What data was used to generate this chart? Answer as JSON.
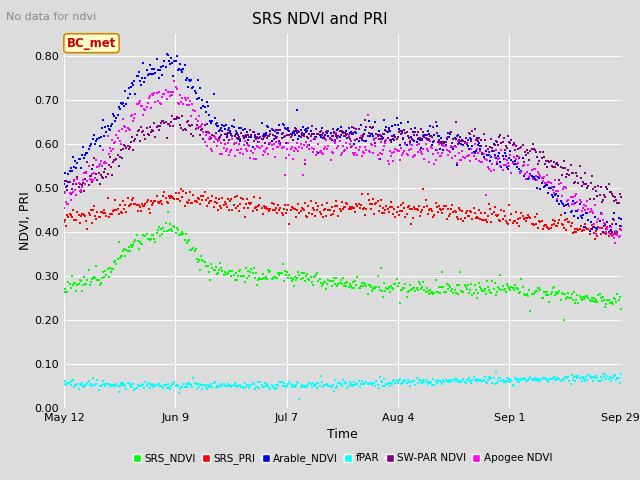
{
  "title": "SRS NDVI and PRI",
  "subtitle": "No data for ndvi",
  "ylabel": "NDVI, PRI",
  "xlabel": "Time",
  "ylim": [
    0.0,
    0.85
  ],
  "yticks": [
    0.0,
    0.1,
    0.2,
    0.3,
    0.4,
    0.5,
    0.6,
    0.7,
    0.8
  ],
  "xtick_labels": [
    "May 12",
    "Jun 9",
    "Jul 7",
    "Aug 4",
    "Sep 1",
    "Sep 29"
  ],
  "annotation_text": "BC_met",
  "annotation_color": "#cc0000",
  "bg_color": "#dcdcdc",
  "plot_bg_color": "#dcdcdc",
  "n_points": 500,
  "srs_ndvi_base": [
    0.265,
    0.3,
    0.38,
    0.41,
    0.31,
    0.3,
    0.3,
    0.29,
    0.28,
    0.27,
    0.27,
    0.27,
    0.27,
    0.26,
    0.25,
    0.24
  ],
  "srs_pri_base": [
    0.43,
    0.44,
    0.46,
    0.48,
    0.47,
    0.46,
    0.45,
    0.45,
    0.46,
    0.45,
    0.45,
    0.44,
    0.43,
    0.42,
    0.41,
    0.4
  ],
  "arable_ndvi_base": [
    0.52,
    0.62,
    0.75,
    0.79,
    0.65,
    0.62,
    0.63,
    0.62,
    0.62,
    0.62,
    0.61,
    0.6,
    0.56,
    0.5,
    0.43,
    0.41
  ],
  "fpar_base": [
    0.055,
    0.052,
    0.05,
    0.05,
    0.05,
    0.05,
    0.052,
    0.052,
    0.055,
    0.058,
    0.06,
    0.062,
    0.063,
    0.065,
    0.068,
    0.07
  ],
  "swpar_base": [
    0.495,
    0.53,
    0.62,
    0.655,
    0.62,
    0.615,
    0.622,
    0.618,
    0.622,
    0.618,
    0.615,
    0.61,
    0.595,
    0.565,
    0.51,
    0.47
  ],
  "apogee_base": [
    0.465,
    0.555,
    0.685,
    0.725,
    0.595,
    0.585,
    0.59,
    0.588,
    0.59,
    0.585,
    0.582,
    0.575,
    0.555,
    0.52,
    0.455,
    0.38
  ]
}
